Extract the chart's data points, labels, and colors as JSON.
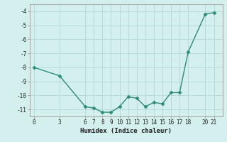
{
  "xlabel": "Humidex (Indice chaleur)",
  "x_values": [
    0,
    3,
    6,
    7,
    8,
    9,
    10,
    11,
    12,
    13,
    14,
    15,
    16,
    17,
    18,
    20,
    21
  ],
  "y_values": [
    -8,
    -8.6,
    -10.8,
    -10.9,
    -11.2,
    -11.2,
    -10.8,
    -10.1,
    -10.2,
    -10.8,
    -10.5,
    -10.6,
    -9.8,
    -9.8,
    -6.9,
    -4.2,
    -4.1
  ],
  "line_color": "#2e8b74",
  "marker_color": "#2e8b74",
  "bg_color": "#d4f0ee",
  "grid_color": "#b8dbd8",
  "spine_color": "#999999",
  "ylim": [
    -11.5,
    -3.5
  ],
  "xlim": [
    -0.5,
    22
  ],
  "yticks": [
    -11,
    -10,
    -9,
    -8,
    -7,
    -6,
    -5,
    -4
  ],
  "xticks": [
    0,
    3,
    6,
    7,
    8,
    9,
    10,
    11,
    12,
    13,
    14,
    15,
    16,
    17,
    18,
    20,
    21
  ]
}
